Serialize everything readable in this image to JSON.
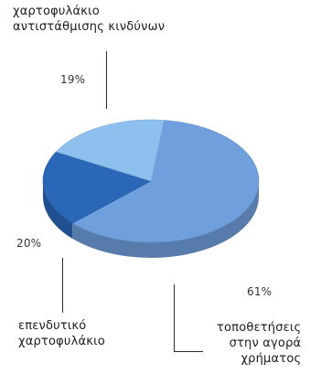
{
  "chart_data": {
    "type": "pie",
    "slices": [
      {
        "label": [
          "τοποθετήσεις",
          "στην αγορά",
          "χρήματος"
        ],
        "value": 61,
        "display": "61%",
        "color": "#6f9fdc"
      },
      {
        "label": [
          "επενδυτικό",
          "χαρτοφυλάκιο"
        ],
        "value": 20,
        "display": "20%",
        "color": "#2a67b7"
      },
      {
        "label": [
          "χαρτοφυλάκιο",
          "αντιστάθμισης κινδύνων"
        ],
        "value": 19,
        "display": "19%",
        "color": "#8dc0ee"
      }
    ]
  }
}
